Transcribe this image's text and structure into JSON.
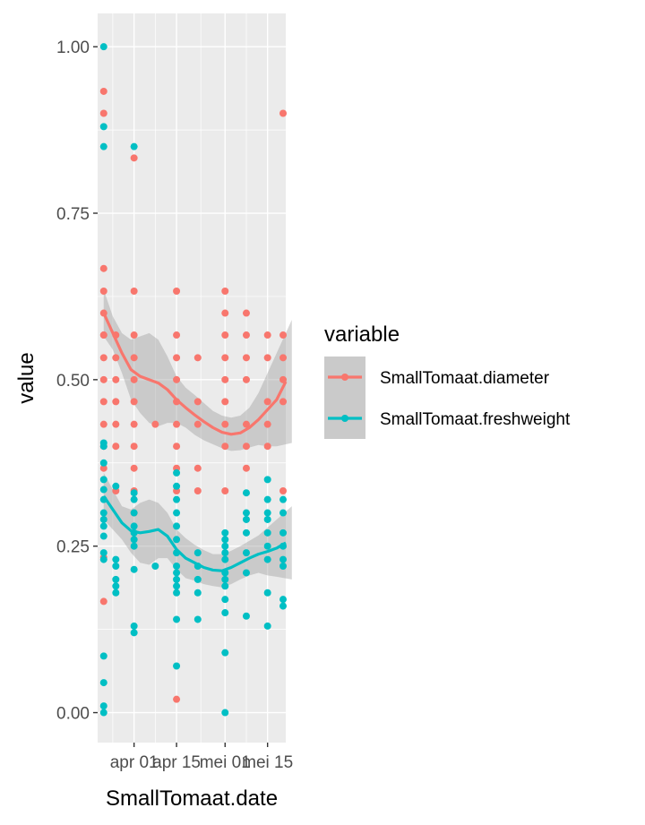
{
  "chart_data": {
    "type": "scatter",
    "xlabel": "SmallTomaat.date",
    "ylabel": "value",
    "xlim": [
      "2021-03-20",
      "2021-05-21"
    ],
    "ylim": [
      -0.045,
      1.05
    ],
    "x_ticks": [
      {
        "date": "2021-04-01",
        "label": "apr 01"
      },
      {
        "date": "2021-04-15",
        "label": "apr 15"
      },
      {
        "date": "2021-05-01",
        "label": "mei 01"
      },
      {
        "date": "2021-05-15",
        "label": "mei 15"
      }
    ],
    "y_ticks": [
      {
        "value": 0.0,
        "label": "0.00"
      },
      {
        "value": 0.25,
        "label": "0.25"
      },
      {
        "value": 0.5,
        "label": "0.50"
      },
      {
        "value": 0.75,
        "label": "0.75"
      },
      {
        "value": 1.0,
        "label": "1.00"
      }
    ],
    "grid": true,
    "legend": {
      "title": "variable",
      "position": "right"
    },
    "series": [
      {
        "name": "SmallTomaat.diameter",
        "color": "#F8766D",
        "points": [
          [
            "2021-03-22",
            0.167
          ],
          [
            "2021-03-22",
            0.233
          ],
          [
            "2021-03-22",
            0.367
          ],
          [
            "2021-03-22",
            0.4
          ],
          [
            "2021-03-22",
            0.433
          ],
          [
            "2021-03-22",
            0.467
          ],
          [
            "2021-03-22",
            0.5
          ],
          [
            "2021-03-22",
            0.533
          ],
          [
            "2021-03-22",
            0.567
          ],
          [
            "2021-03-22",
            0.567
          ],
          [
            "2021-03-22",
            0.6
          ],
          [
            "2021-03-22",
            0.633
          ],
          [
            "2021-03-22",
            0.667
          ],
          [
            "2021-03-22",
            0.9
          ],
          [
            "2021-03-22",
            0.933
          ],
          [
            "2021-03-26",
            0.333
          ],
          [
            "2021-03-26",
            0.4
          ],
          [
            "2021-03-26",
            0.433
          ],
          [
            "2021-03-26",
            0.467
          ],
          [
            "2021-03-26",
            0.5
          ],
          [
            "2021-03-26",
            0.533
          ],
          [
            "2021-03-26",
            0.567
          ],
          [
            "2021-04-01",
            0.3
          ],
          [
            "2021-04-01",
            0.333
          ],
          [
            "2021-04-01",
            0.367
          ],
          [
            "2021-04-01",
            0.4
          ],
          [
            "2021-04-01",
            0.433
          ],
          [
            "2021-04-01",
            0.467
          ],
          [
            "2021-04-01",
            0.5
          ],
          [
            "2021-04-01",
            0.533
          ],
          [
            "2021-04-01",
            0.567
          ],
          [
            "2021-04-01",
            0.633
          ],
          [
            "2021-04-01",
            0.833
          ],
          [
            "2021-04-08",
            0.433
          ],
          [
            "2021-04-15",
            0.02
          ],
          [
            "2021-04-15",
            0.333
          ],
          [
            "2021-04-15",
            0.367
          ],
          [
            "2021-04-15",
            0.4
          ],
          [
            "2021-04-15",
            0.433
          ],
          [
            "2021-04-15",
            0.467
          ],
          [
            "2021-04-15",
            0.5
          ],
          [
            "2021-04-15",
            0.533
          ],
          [
            "2021-04-15",
            0.567
          ],
          [
            "2021-04-15",
            0.633
          ],
          [
            "2021-04-22",
            0.333
          ],
          [
            "2021-04-22",
            0.367
          ],
          [
            "2021-04-22",
            0.433
          ],
          [
            "2021-04-22",
            0.467
          ],
          [
            "2021-04-22",
            0.533
          ],
          [
            "2021-05-01",
            0.333
          ],
          [
            "2021-05-01",
            0.4
          ],
          [
            "2021-05-01",
            0.433
          ],
          [
            "2021-05-01",
            0.467
          ],
          [
            "2021-05-01",
            0.5
          ],
          [
            "2021-05-01",
            0.533
          ],
          [
            "2021-05-01",
            0.567
          ],
          [
            "2021-05-01",
            0.6
          ],
          [
            "2021-05-01",
            0.633
          ],
          [
            "2021-05-08",
            0.367
          ],
          [
            "2021-05-08",
            0.4
          ],
          [
            "2021-05-08",
            0.433
          ],
          [
            "2021-05-08",
            0.5
          ],
          [
            "2021-05-08",
            0.533
          ],
          [
            "2021-05-08",
            0.567
          ],
          [
            "2021-05-08",
            0.6
          ],
          [
            "2021-05-15",
            0.4
          ],
          [
            "2021-05-15",
            0.433
          ],
          [
            "2021-05-15",
            0.467
          ],
          [
            "2021-05-15",
            0.533
          ],
          [
            "2021-05-15",
            0.567
          ],
          [
            "2021-05-23",
            0.333
          ],
          [
            "2021-05-23",
            0.467
          ],
          [
            "2021-05-23",
            0.5
          ],
          [
            "2021-05-23",
            0.533
          ],
          [
            "2021-05-23",
            0.567
          ],
          [
            "2021-05-23",
            0.9
          ]
        ],
        "smooth": [
          [
            "2021-03-22",
            0.6
          ],
          [
            "2021-03-25",
            0.57
          ],
          [
            "2021-03-28",
            0.54
          ],
          [
            "2021-03-31",
            0.515
          ],
          [
            "2021-04-03",
            0.505
          ],
          [
            "2021-04-06",
            0.5
          ],
          [
            "2021-04-09",
            0.495
          ],
          [
            "2021-04-12",
            0.485
          ],
          [
            "2021-04-15",
            0.47
          ],
          [
            "2021-04-18",
            0.458
          ],
          [
            "2021-04-21",
            0.447
          ],
          [
            "2021-04-24",
            0.437
          ],
          [
            "2021-04-27",
            0.428
          ],
          [
            "2021-04-30",
            0.421
          ],
          [
            "2021-05-03",
            0.418
          ],
          [
            "2021-05-06",
            0.42
          ],
          [
            "2021-05-09",
            0.428
          ],
          [
            "2021-05-12",
            0.44
          ],
          [
            "2021-05-15",
            0.455
          ],
          [
            "2021-05-18",
            0.47
          ],
          [
            "2021-05-23",
            0.497
          ]
        ],
        "band": [
          [
            "2021-03-22",
            0.635,
            0.565
          ],
          [
            "2021-03-25",
            0.595,
            0.545
          ],
          [
            "2021-03-28",
            0.57,
            0.51
          ],
          [
            "2021-03-31",
            0.56,
            0.47
          ],
          [
            "2021-04-03",
            0.565,
            0.45
          ],
          [
            "2021-04-06",
            0.57,
            0.435
          ],
          [
            "2021-04-09",
            0.56,
            0.43
          ],
          [
            "2021-04-12",
            0.535,
            0.435
          ],
          [
            "2021-04-15",
            0.505,
            0.435
          ],
          [
            "2021-04-18",
            0.488,
            0.428
          ],
          [
            "2021-04-21",
            0.477,
            0.417
          ],
          [
            "2021-04-24",
            0.465,
            0.409
          ],
          [
            "2021-04-27",
            0.453,
            0.403
          ],
          [
            "2021-04-30",
            0.446,
            0.397
          ],
          [
            "2021-05-03",
            0.443,
            0.393
          ],
          [
            "2021-05-06",
            0.446,
            0.394
          ],
          [
            "2021-05-09",
            0.458,
            0.398
          ],
          [
            "2021-05-12",
            0.48,
            0.402
          ],
          [
            "2021-05-15",
            0.51,
            0.4
          ],
          [
            "2021-05-18",
            0.54,
            0.4
          ],
          [
            "2021-05-23",
            0.59,
            0.405
          ]
        ]
      },
      {
        "name": "SmallTomaat.freshweight",
        "color": "#00BFC4",
        "points": [
          [
            "2021-03-22",
            0.0
          ],
          [
            "2021-03-22",
            0.01
          ],
          [
            "2021-03-22",
            0.045
          ],
          [
            "2021-03-22",
            0.085
          ],
          [
            "2021-03-22",
            0.23
          ],
          [
            "2021-03-22",
            0.24
          ],
          [
            "2021-03-22",
            0.265
          ],
          [
            "2021-03-22",
            0.28
          ],
          [
            "2021-03-22",
            0.29
          ],
          [
            "2021-03-22",
            0.3
          ],
          [
            "2021-03-22",
            0.32
          ],
          [
            "2021-03-22",
            0.335
          ],
          [
            "2021-03-22",
            0.35
          ],
          [
            "2021-03-22",
            0.375
          ],
          [
            "2021-03-22",
            0.4
          ],
          [
            "2021-03-22",
            0.405
          ],
          [
            "2021-03-22",
            0.85
          ],
          [
            "2021-03-22",
            0.88
          ],
          [
            "2021-03-22",
            1.0
          ],
          [
            "2021-03-26",
            0.18
          ],
          [
            "2021-03-26",
            0.19
          ],
          [
            "2021-03-26",
            0.2
          ],
          [
            "2021-03-26",
            0.22
          ],
          [
            "2021-03-26",
            0.23
          ],
          [
            "2021-03-26",
            0.34
          ],
          [
            "2021-04-01",
            0.12
          ],
          [
            "2021-04-01",
            0.13
          ],
          [
            "2021-04-01",
            0.215
          ],
          [
            "2021-04-01",
            0.25
          ],
          [
            "2021-04-01",
            0.26
          ],
          [
            "2021-04-01",
            0.27
          ],
          [
            "2021-04-01",
            0.28
          ],
          [
            "2021-04-01",
            0.3
          ],
          [
            "2021-04-01",
            0.32
          ],
          [
            "2021-04-01",
            0.33
          ],
          [
            "2021-04-01",
            0.85
          ],
          [
            "2021-04-08",
            0.22
          ],
          [
            "2021-04-15",
            0.07
          ],
          [
            "2021-04-15",
            0.14
          ],
          [
            "2021-04-15",
            0.18
          ],
          [
            "2021-04-15",
            0.19
          ],
          [
            "2021-04-15",
            0.2
          ],
          [
            "2021-04-15",
            0.21
          ],
          [
            "2021-04-15",
            0.22
          ],
          [
            "2021-04-15",
            0.24
          ],
          [
            "2021-04-15",
            0.26
          ],
          [
            "2021-04-15",
            0.28
          ],
          [
            "2021-04-15",
            0.3
          ],
          [
            "2021-04-15",
            0.32
          ],
          [
            "2021-04-15",
            0.34
          ],
          [
            "2021-04-15",
            0.36
          ],
          [
            "2021-04-22",
            0.14
          ],
          [
            "2021-04-22",
            0.18
          ],
          [
            "2021-04-22",
            0.2
          ],
          [
            "2021-04-22",
            0.22
          ],
          [
            "2021-04-22",
            0.24
          ],
          [
            "2021-05-01",
            0.0
          ],
          [
            "2021-05-01",
            0.09
          ],
          [
            "2021-05-01",
            0.15
          ],
          [
            "2021-05-01",
            0.17
          ],
          [
            "2021-05-01",
            0.19
          ],
          [
            "2021-05-01",
            0.2
          ],
          [
            "2021-05-01",
            0.21
          ],
          [
            "2021-05-01",
            0.23
          ],
          [
            "2021-05-01",
            0.24
          ],
          [
            "2021-05-01",
            0.25
          ],
          [
            "2021-05-01",
            0.26
          ],
          [
            "2021-05-01",
            0.27
          ],
          [
            "2021-05-08",
            0.145
          ],
          [
            "2021-05-08",
            0.21
          ],
          [
            "2021-05-08",
            0.24
          ],
          [
            "2021-05-08",
            0.27
          ],
          [
            "2021-05-08",
            0.29
          ],
          [
            "2021-05-08",
            0.3
          ],
          [
            "2021-05-08",
            0.33
          ],
          [
            "2021-05-15",
            0.13
          ],
          [
            "2021-05-15",
            0.18
          ],
          [
            "2021-05-15",
            0.23
          ],
          [
            "2021-05-15",
            0.25
          ],
          [
            "2021-05-15",
            0.27
          ],
          [
            "2021-05-15",
            0.29
          ],
          [
            "2021-05-15",
            0.3
          ],
          [
            "2021-05-15",
            0.32
          ],
          [
            "2021-05-15",
            0.35
          ],
          [
            "2021-05-23",
            0.16
          ],
          [
            "2021-05-23",
            0.17
          ],
          [
            "2021-05-23",
            0.22
          ],
          [
            "2021-05-23",
            0.23
          ],
          [
            "2021-05-23",
            0.25
          ],
          [
            "2021-05-23",
            0.27
          ],
          [
            "2021-05-23",
            0.3
          ],
          [
            "2021-05-23",
            0.32
          ]
        ],
        "smooth": [
          [
            "2021-03-22",
            0.325
          ],
          [
            "2021-03-25",
            0.305
          ],
          [
            "2021-03-28",
            0.285
          ],
          [
            "2021-03-31",
            0.273
          ],
          [
            "2021-04-03",
            0.27
          ],
          [
            "2021-04-06",
            0.272
          ],
          [
            "2021-04-09",
            0.275
          ],
          [
            "2021-04-12",
            0.265
          ],
          [
            "2021-04-15",
            0.245
          ],
          [
            "2021-04-18",
            0.232
          ],
          [
            "2021-04-21",
            0.225
          ],
          [
            "2021-04-24",
            0.218
          ],
          [
            "2021-04-27",
            0.214
          ],
          [
            "2021-04-30",
            0.213
          ],
          [
            "2021-05-03",
            0.218
          ],
          [
            "2021-05-06",
            0.225
          ],
          [
            "2021-05-09",
            0.232
          ],
          [
            "2021-05-12",
            0.238
          ],
          [
            "2021-05-15",
            0.242
          ],
          [
            "2021-05-18",
            0.247
          ],
          [
            "2021-05-23",
            0.255
          ]
        ],
        "band": [
          [
            "2021-03-22",
            0.36,
            0.29
          ],
          [
            "2021-03-25",
            0.335,
            0.275
          ],
          [
            "2021-03-28",
            0.31,
            0.26
          ],
          [
            "2021-03-31",
            0.305,
            0.24
          ],
          [
            "2021-04-03",
            0.315,
            0.225
          ],
          [
            "2021-04-06",
            0.32,
            0.222
          ],
          [
            "2021-04-09",
            0.315,
            0.232
          ],
          [
            "2021-04-12",
            0.3,
            0.232
          ],
          [
            "2021-04-15",
            0.275,
            0.215
          ],
          [
            "2021-04-18",
            0.262,
            0.202
          ],
          [
            "2021-04-21",
            0.252,
            0.198
          ],
          [
            "2021-04-24",
            0.244,
            0.193
          ],
          [
            "2021-04-27",
            0.238,
            0.19
          ],
          [
            "2021-04-30",
            0.238,
            0.188
          ],
          [
            "2021-05-03",
            0.243,
            0.193
          ],
          [
            "2021-05-06",
            0.25,
            0.2
          ],
          [
            "2021-05-09",
            0.258,
            0.206
          ],
          [
            "2021-05-12",
            0.266,
            0.21
          ],
          [
            "2021-05-15",
            0.278,
            0.206
          ],
          [
            "2021-05-18",
            0.29,
            0.204
          ],
          [
            "2021-05-23",
            0.31,
            0.2
          ]
        ]
      }
    ]
  }
}
